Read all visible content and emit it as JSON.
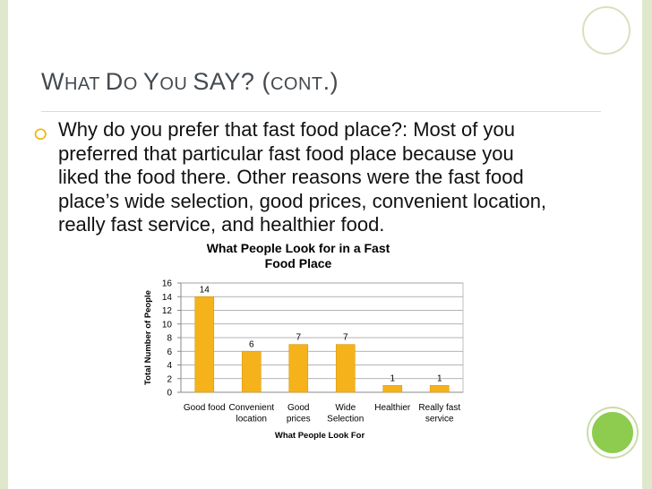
{
  "slide": {
    "title_parts": [
      "W",
      "HAT ",
      "D",
      "O ",
      "Y",
      "OU ",
      "S",
      "AY? (",
      "CONT",
      ".)"
    ],
    "body": "Why do you prefer that fast food place?:  Most of you preferred that particular fast food place because you liked the food there.  Other reasons were the fast food place’s wide selection, good prices, convenient location, really fast service, and healthier food.",
    "bullet_icon": "ring-bullet-icon",
    "accent_color": "#f2b300"
  },
  "chart_data": {
    "type": "bar",
    "title": "What People Look for in a Fast Food Place",
    "title_lines": [
      "What People Look for in a Fast",
      "Food Place"
    ],
    "xlabel": "What People Look For",
    "ylabel": "Total Number of People",
    "categories": [
      [
        "Good food"
      ],
      [
        "Convenient",
        "location"
      ],
      [
        "Good",
        "prices"
      ],
      [
        "Wide",
        "Selection"
      ],
      [
        "Healthier"
      ],
      [
        "Really fast",
        "service"
      ]
    ],
    "values": [
      14,
      6,
      7,
      7,
      1,
      1
    ],
    "ylim": [
      0,
      16
    ],
    "yticks": [
      0,
      2,
      4,
      6,
      8,
      10,
      12,
      14,
      16
    ],
    "grid": true,
    "legend": "none",
    "bar_color": "#f5b21b"
  }
}
